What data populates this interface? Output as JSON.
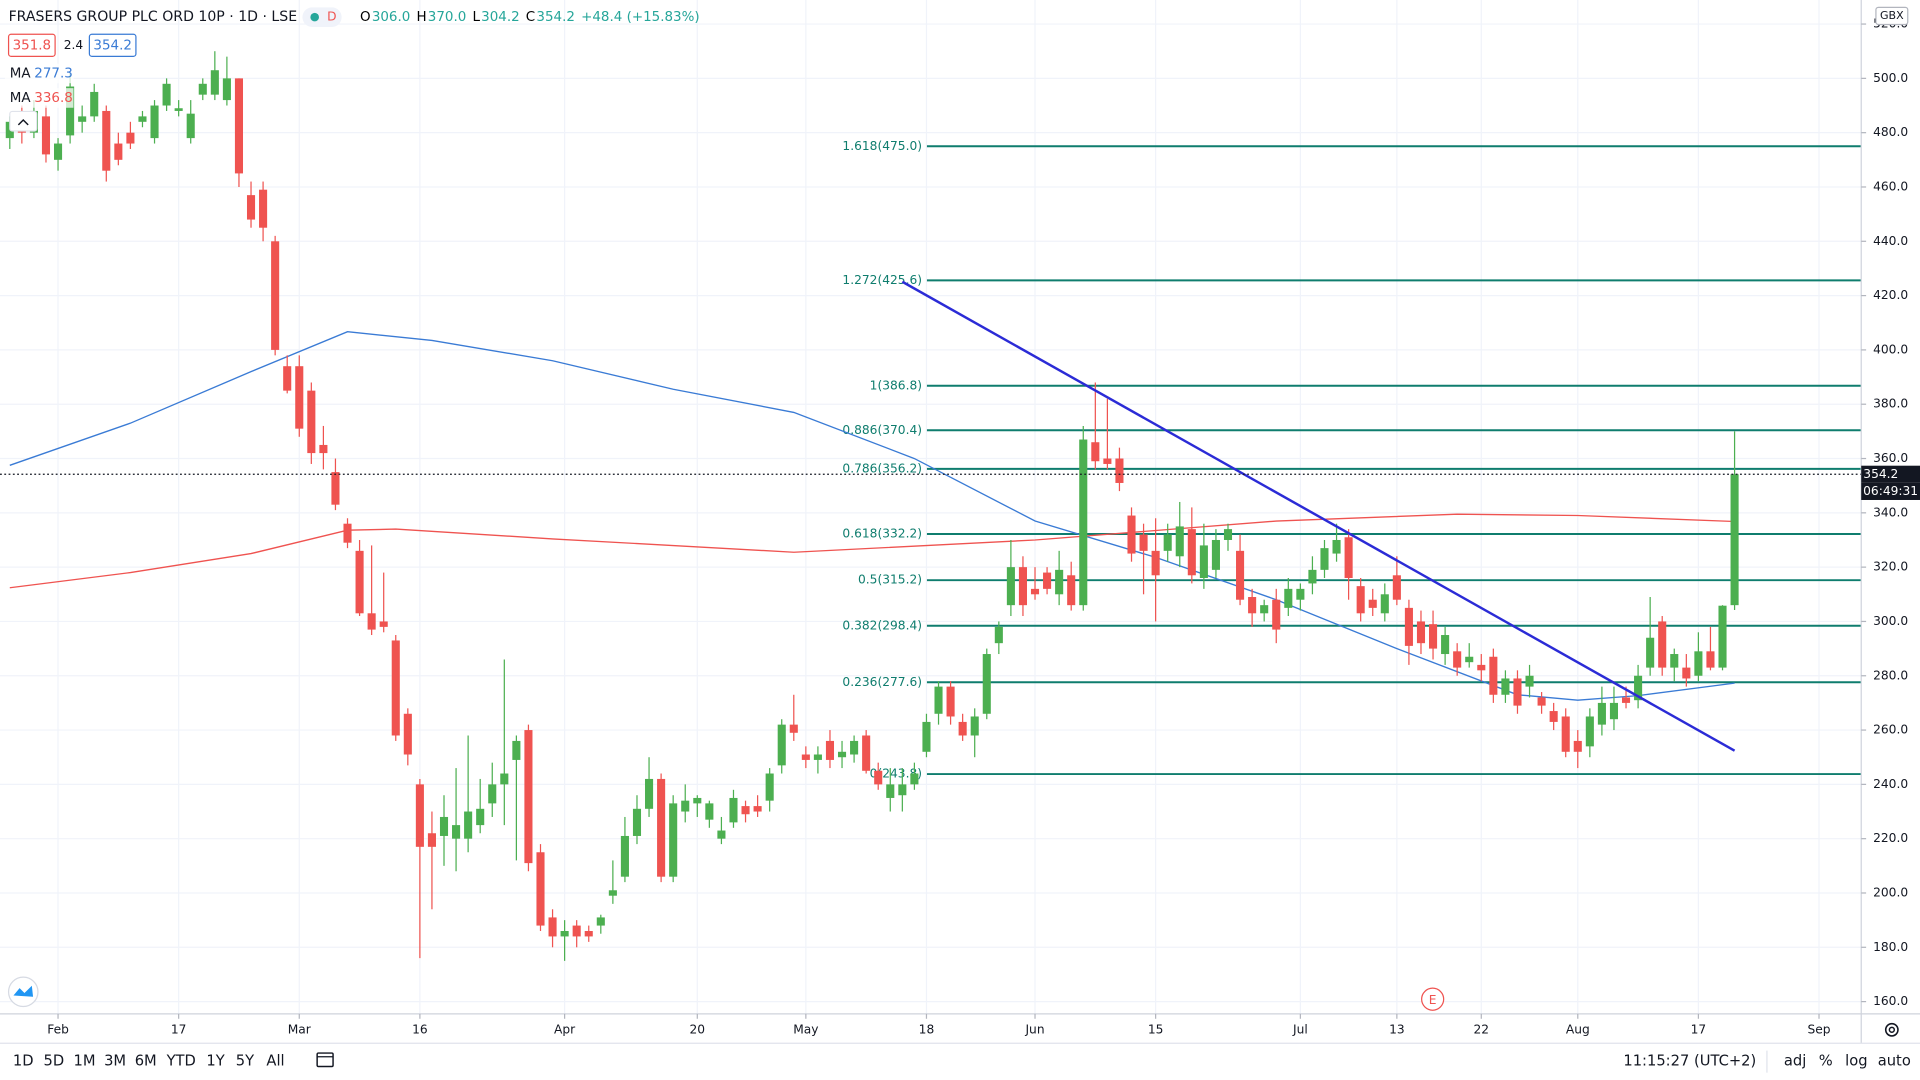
{
  "chart_data": {
    "type": "candlestick",
    "title": "FRASERS GROUP PLC ORD 10P · 1D · LSE",
    "badge": "D",
    "ohlc_legend": [
      {
        "key": "O",
        "value": "306.0"
      },
      {
        "key": "H",
        "value": "370.0"
      },
      {
        "key": "L",
        "value": "304.2"
      },
      {
        "key": "C",
        "value": "354.2"
      }
    ],
    "change": "+48.4 (+15.83%)",
    "bid": "351.8",
    "spread": "2.4",
    "ask": "354.2",
    "currency": "GBX",
    "countdown": "06:49:31",
    "earnings_marker": "E",
    "up_color": "#4caf50",
    "down_color": "#ef5350",
    "open": [
      478,
      486,
      480,
      486,
      470,
      479,
      484,
      486,
      488,
      476,
      480,
      484,
      478,
      490,
      488,
      478,
      494,
      494,
      492,
      500,
      457,
      459,
      440,
      394,
      394,
      385,
      365,
      355,
      336,
      326,
      303,
      300,
      293,
      266,
      240,
      222,
      221,
      220,
      220,
      225,
      233,
      240,
      249,
      260,
      215,
      191,
      184,
      188,
      186,
      188,
      199,
      206,
      221,
      231,
      242,
      206,
      230,
      233,
      227,
      220,
      226,
      232,
      232,
      234,
      247,
      262,
      251,
      249,
      256,
      250,
      251,
      258,
      245,
      235,
      236,
      240,
      252,
      266,
      276,
      263,
      258,
      266,
      292,
      306,
      320,
      312,
      318,
      310,
      317,
      306,
      366,
      360,
      360,
      339,
      332,
      326,
      326,
      324,
      334,
      316,
      319,
      330,
      326,
      309,
      303,
      308,
      305,
      308,
      314,
      319,
      325,
      331,
      313,
      308,
      303,
      317,
      305,
      300,
      299,
      288,
      289,
      285,
      284,
      287,
      273,
      279,
      276,
      272,
      267,
      265,
      256,
      254,
      262,
      264,
      272,
      271,
      283,
      300,
      283,
      283,
      280,
      289,
      283,
      306
    ],
    "high": [
      486,
      490,
      492,
      490,
      478,
      502,
      490,
      498,
      490,
      480,
      484,
      488,
      492,
      500,
      492,
      492,
      500,
      510,
      508,
      500,
      462,
      462,
      442,
      398,
      398,
      388,
      372,
      360,
      338,
      330,
      328,
      318,
      295,
      268,
      242,
      230,
      236,
      246,
      258,
      242,
      248,
      286,
      258,
      262,
      218,
      194,
      190,
      190,
      188,
      192,
      212,
      228,
      236,
      250,
      244,
      236,
      240,
      236,
      234,
      228,
      238,
      234,
      236,
      246,
      264,
      273,
      254,
      254,
      260,
      256,
      258,
      260,
      248,
      246,
      246,
      248,
      266,
      278,
      278,
      266,
      268,
      290,
      300,
      330,
      324,
      320,
      320,
      326,
      322,
      372,
      388,
      382,
      364,
      342,
      336,
      338,
      336,
      344,
      342,
      336,
      334,
      336,
      332,
      312,
      308,
      312,
      316,
      314,
      324,
      330,
      336,
      334,
      316,
      312,
      314,
      324,
      308,
      304,
      304,
      298,
      292,
      292,
      288,
      290,
      282,
      282,
      284,
      274,
      270,
      268,
      260,
      268,
      276,
      276,
      276,
      284,
      309,
      302,
      290,
      288,
      296,
      298,
      306,
      370
    ],
    "low": [
      474,
      476,
      478,
      469,
      466,
      476,
      480,
      484,
      462,
      468,
      474,
      482,
      476,
      488,
      486,
      476,
      492,
      492,
      490,
      460,
      445,
      440,
      398,
      384,
      368,
      358,
      356,
      341,
      327,
      302,
      295,
      296,
      256,
      247,
      176,
      194,
      210,
      208,
      215,
      222,
      228,
      225,
      212,
      208,
      186,
      180,
      175,
      180,
      182,
      185,
      196,
      204,
      218,
      228,
      204,
      204,
      226,
      228,
      224,
      218,
      224,
      226,
      228,
      230,
      244,
      256,
      246,
      244,
      246,
      246,
      248,
      244,
      238,
      230,
      230,
      238,
      250,
      262,
      262,
      256,
      250,
      264,
      288,
      302,
      302,
      308,
      310,
      306,
      304,
      304,
      356,
      356,
      348,
      322,
      310,
      300,
      322,
      320,
      314,
      312,
      316,
      326,
      306,
      298,
      300,
      292,
      302,
      304,
      310,
      316,
      322,
      308,
      300,
      302,
      300,
      306,
      284,
      288,
      286,
      284,
      280,
      283,
      278,
      270,
      270,
      266,
      272,
      266,
      260,
      250,
      246,
      250,
      258,
      260,
      268,
      268,
      280,
      280,
      278,
      276,
      278,
      282,
      282,
      304.2
    ],
    "close": [
      484,
      480,
      488,
      472,
      476,
      497,
      486,
      495,
      466,
      470,
      476,
      486,
      490,
      498,
      489,
      487,
      498,
      503,
      500,
      465,
      448,
      445,
      400,
      385,
      371,
      362,
      362,
      343,
      329,
      303,
      297,
      298,
      258,
      251,
      217,
      217,
      228,
      225,
      230,
      231,
      240,
      244,
      256,
      211,
      188,
      184,
      186,
      184,
      184,
      191,
      201,
      221,
      231,
      242,
      206,
      233,
      234,
      235,
      233,
      223,
      235,
      229,
      230,
      244,
      262,
      259,
      249,
      251,
      249,
      252,
      256,
      245,
      240,
      240,
      240,
      244,
      263,
      276,
      265,
      258,
      265,
      288,
      298,
      320,
      306,
      310,
      312,
      319,
      306,
      367,
      359,
      358,
      351,
      325,
      326,
      317,
      332,
      335,
      317,
      328,
      330,
      334,
      308,
      303,
      306,
      297,
      312,
      312,
      319,
      327,
      330,
      316,
      303,
      305,
      310,
      308,
      291,
      292,
      290,
      295,
      283,
      287,
      282,
      273,
      279,
      269,
      280,
      269,
      263,
      252,
      252,
      265,
      270,
      270,
      270,
      280,
      294,
      283,
      288,
      279,
      289,
      283,
      305.8,
      354.2
    ],
    "series": [
      {
        "name": "MA",
        "color": "#3a7bd5",
        "x": [
          0,
          10,
          20,
          28,
          35,
          45,
          55,
          65,
          75,
          85,
          95,
          105,
          115,
          125,
          130,
          135,
          143
        ],
        "values": [
          357.5,
          373,
          392,
          406.7,
          403.5,
          396,
          385.5,
          377,
          360,
          337,
          323.6,
          308,
          290,
          273,
          271,
          272.7,
          277.3
        ]
      },
      {
        "name": "MA",
        "color": "#ef5350",
        "x": [
          0,
          10,
          20,
          28,
          32,
          45,
          65,
          85,
          105,
          120,
          130,
          143
        ],
        "values": [
          312.4,
          318,
          325,
          333.6,
          334,
          330.4,
          325.5,
          330,
          337,
          339.5,
          339,
          336.8
        ]
      }
    ],
    "fib_color": "#0f7d6e",
    "fib_levels": [
      {
        "value": 475.0,
        "label": "1.618(475.0)"
      },
      {
        "value": 425.6,
        "label": "1.272(425.6)"
      },
      {
        "value": 386.8,
        "label": "1(386.8)"
      },
      {
        "value": 370.4,
        "label": "0.886(370.4)"
      },
      {
        "value": 356.2,
        "label": "0.786(356.2)"
      },
      {
        "value": 332.2,
        "label": "0.618(332.2)"
      },
      {
        "value": 315.2,
        "label": "0.5(315.2)"
      },
      {
        "value": 298.4,
        "label": "0.382(298.4)"
      },
      {
        "value": 277.6,
        "label": "0.236(277.6)"
      },
      {
        "value": 243.8,
        "label": "0(243.8)"
      }
    ],
    "trendline": {
      "color": "#2b2bd6",
      "x": [
        74,
        143
      ],
      "values": [
        425.1,
        252.4
      ]
    },
    "xlim": [
      -0.812,
      153.5
    ],
    "xticks": [
      {
        "value": 4,
        "label": "Feb"
      },
      {
        "value": 14,
        "label": "17"
      },
      {
        "value": 24,
        "label": "Mar"
      },
      {
        "value": 34,
        "label": "16"
      },
      {
        "value": 46,
        "label": "Apr"
      },
      {
        "value": 57,
        "label": "20"
      },
      {
        "value": 66,
        "label": "May"
      },
      {
        "value": 76,
        "label": "18"
      },
      {
        "value": 85,
        "label": "Jun"
      },
      {
        "value": 95,
        "label": "15"
      },
      {
        "value": 107,
        "label": "Jul"
      },
      {
        "value": 115,
        "label": "13"
      },
      {
        "value": 122,
        "label": "22"
      },
      {
        "value": 130,
        "label": "Aug"
      },
      {
        "value": 140,
        "label": "17"
      },
      {
        "value": 150,
        "label": "Sep"
      }
    ],
    "ylim": [
      155.48,
      528.86
    ],
    "yticks": [
      {
        "value": 520,
        "label": "520.0"
      },
      {
        "value": 500,
        "label": "500.0"
      },
      {
        "value": 480,
        "label": "480.0"
      },
      {
        "value": 460,
        "label": "460.0"
      },
      {
        "value": 440,
        "label": "440.0"
      },
      {
        "value": 420,
        "label": "420.0"
      },
      {
        "value": 400,
        "label": "400.0"
      },
      {
        "value": 380,
        "label": "380.0"
      },
      {
        "value": 360,
        "label": "360.0"
      },
      {
        "value": 340,
        "label": "340.0"
      },
      {
        "value": 320,
        "label": "320.0"
      },
      {
        "value": 300,
        "label": "300.0"
      },
      {
        "value": 280,
        "label": "280.0"
      },
      {
        "value": 260,
        "label": "260.0"
      },
      {
        "value": 240,
        "label": "240.0"
      },
      {
        "value": 220,
        "label": "220.0"
      },
      {
        "value": 200,
        "label": "200.0"
      },
      {
        "value": 180,
        "label": "180.0"
      },
      {
        "value": 160,
        "label": "160.0"
      }
    ],
    "grid": true
  },
  "toolbar": {
    "ranges": [
      "1D",
      "5D",
      "1M",
      "3M",
      "6M",
      "YTD",
      "1Y",
      "5Y",
      "All"
    ],
    "clock": "11:15:27 (UTC+2)",
    "options": [
      "adj",
      "%",
      "log",
      "auto"
    ]
  }
}
